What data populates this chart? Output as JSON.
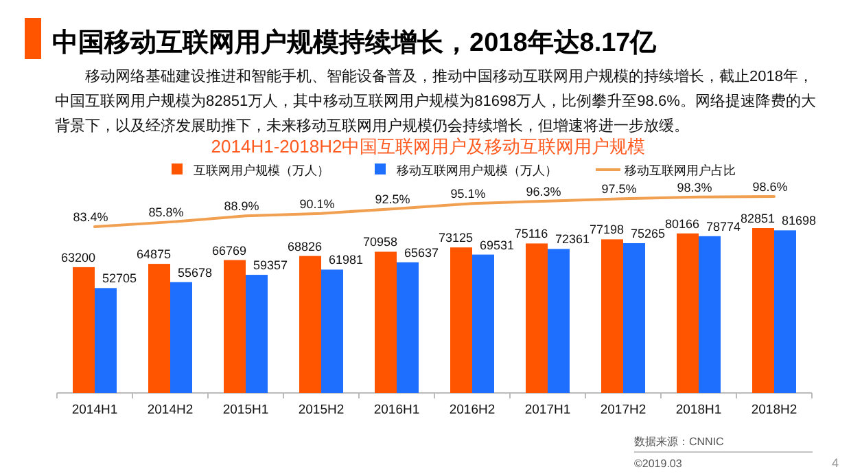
{
  "chart_data": {
    "type": "bar",
    "title": "中国移动互联网用户规模持续增长，2018年达8.17亿",
    "subtitle": "2014H1-2018H2中国互联网用户及移动互联网用户规模",
    "categories": [
      "2014H1",
      "2014H2",
      "2015H1",
      "2015H2",
      "2016H1",
      "2016H2",
      "2017H1",
      "2017H2",
      "2018H1",
      "2018H2"
    ],
    "series": [
      {
        "name": "互联网用户规模（万人）",
        "color": "#ff5500",
        "values": [
          63200,
          64875,
          66769,
          68826,
          70958,
          73125,
          75116,
          77198,
          80166,
          82851
        ]
      },
      {
        "name": "移动互联网用户规模（万人）",
        "color": "#1f6fff",
        "values": [
          52705,
          55678,
          59357,
          61981,
          65637,
          69531,
          72361,
          75265,
          78774,
          81698
        ]
      },
      {
        "name": "移动互联网用户占比",
        "type": "line",
        "axis": "y2",
        "color": "#f0a050",
        "values": [
          83.4,
          85.8,
          88.9,
          90.1,
          92.5,
          95.1,
          96.3,
          97.5,
          98.3,
          98.6
        ],
        "value_labels": [
          "83.4%",
          "85.8%",
          "88.9%",
          "90.1%",
          "92.5%",
          "95.1%",
          "96.3%",
          "97.5%",
          "98.3%",
          "98.6%"
        ]
      }
    ],
    "data_labels": true,
    "legend": "top",
    "tick_labels": "x",
    "grid": false,
    "marker": "none",
    "annotations": [
      "移动网络基础建设推进和智能手机、智能设备普及，推动中国移动互联网用户规模的持续增长，截止2018年，中国互联网用户规模为82851万人，其中移动互联网用户规模为81698万人，比例攀升至98.6%。网络提速降费的大背景下，以及经济发展助推下，未来移动互联网用户规模仍会持续增长，但增速将进一步放缓。",
      "数据来源：CNNIC",
      "©2019.03",
      "4"
    ]
  }
}
